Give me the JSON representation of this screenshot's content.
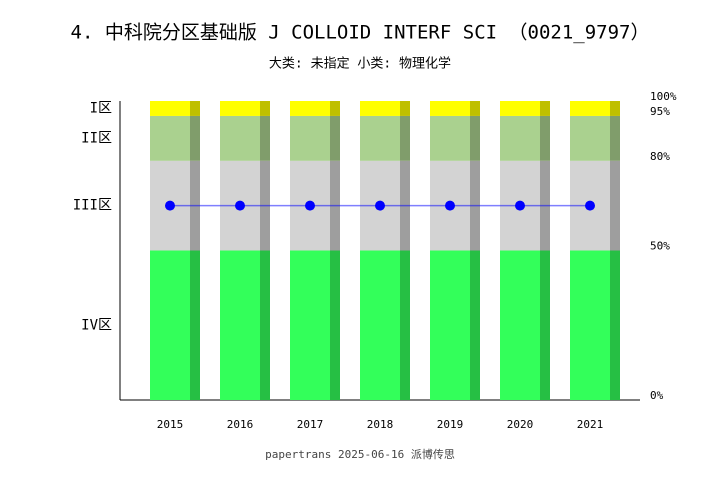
{
  "chart_data": {
    "type": "bar",
    "stacked": true,
    "title": "4. 中科院分区基础版 J COLLOID INTERF SCI （0021_9797）",
    "subtitle": "大类: 未指定 小类: 物理化学",
    "footer": "papertrans 2025-06-16 派博传思",
    "categories": [
      "2015",
      "2016",
      "2017",
      "2018",
      "2019",
      "2020",
      "2021"
    ],
    "series": [
      {
        "name": "IV区",
        "color": "#33ff5a",
        "values": [
          50,
          50,
          50,
          50,
          50,
          50,
          50
        ]
      },
      {
        "name": "III区",
        "color": "#d3d3d3",
        "values": [
          30,
          30,
          30,
          30,
          30,
          30,
          30
        ]
      },
      {
        "name": "II区",
        "color": "#aad18f",
        "values": [
          15,
          15,
          15,
          15,
          15,
          15,
          15
        ]
      },
      {
        "name": "I区",
        "color": "#ffff00",
        "values": [
          5,
          5,
          5,
          5,
          5,
          5,
          5
        ]
      }
    ],
    "line": {
      "color": "#0000ff",
      "values": [
        65,
        65,
        65,
        65,
        65,
        65,
        65
      ]
    },
    "ylim": [
      0,
      100
    ],
    "yticks": [
      {
        "value": 0,
        "label": "0%"
      },
      {
        "value": 50,
        "label": "50%"
      },
      {
        "value": 80,
        "label": "80%"
      },
      {
        "value": 95,
        "label": "95%"
      },
      {
        "value": 100,
        "label": "100%"
      }
    ]
  }
}
